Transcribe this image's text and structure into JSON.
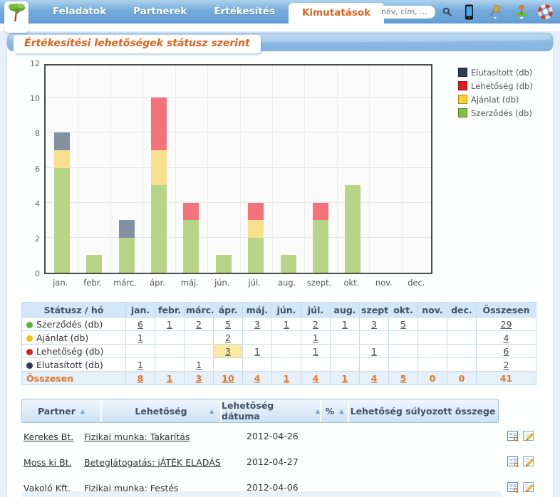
{
  "nav": {
    "tabs": [
      {
        "label": "Feladatok",
        "active": false
      },
      {
        "label": "Partnerek",
        "active": false
      },
      {
        "label": "Értékesítés",
        "active": false
      },
      {
        "label": "Kimutatások",
        "active": true
      }
    ],
    "search": {
      "placeholder": "név, cím, ..."
    },
    "icons": [
      "search-icon",
      "phone-icon",
      "pin-icon",
      "user-icon",
      "help-icon"
    ]
  },
  "page_title": "Értékesítési lehetőségek státusz szerint",
  "chart_data": {
    "type": "bar",
    "stacked": true,
    "categories": [
      "jan.",
      "febr.",
      "márc.",
      "ápr.",
      "máj.",
      "jún.",
      "júl.",
      "aug.",
      "szept.",
      "okt.",
      "nov.",
      "dec."
    ],
    "series": [
      {
        "name": "Szerződés (db)",
        "bar_color": "#b5d686",
        "legend_color": "#82c13d",
        "values": [
          6,
          1,
          2,
          5,
          3,
          1,
          2,
          1,
          3,
          5,
          0,
          0
        ]
      },
      {
        "name": "Ajánlat (db)",
        "bar_color": "#f8e08c",
        "legend_color": "#fdd02f",
        "values": [
          1,
          0,
          0,
          2,
          0,
          0,
          1,
          0,
          0,
          0,
          0,
          0
        ]
      },
      {
        "name": "Lehetőség (db)",
        "bar_color": "#f4737b",
        "legend_color": "#e2191f",
        "values": [
          0,
          0,
          0,
          3,
          1,
          0,
          1,
          0,
          1,
          0,
          0,
          0
        ]
      },
      {
        "name": "Elutasított (db)",
        "bar_color": "#8291a2",
        "legend_color": "#333d4c",
        "values": [
          1,
          0,
          1,
          0,
          0,
          0,
          0,
          0,
          0,
          0,
          0,
          0
        ]
      }
    ],
    "title": "",
    "xlabel": "",
    "ylabel": "",
    "ylim": [
      0,
      12
    ],
    "yticks": [
      0,
      2,
      4,
      6,
      8,
      10,
      12
    ],
    "grid": true,
    "legend_position": "top-right",
    "legend_order_top_to_bottom": [
      "Elutasított (db)",
      "Lehetőség (db)",
      "Ajánlat (db)",
      "Szerződés (db)"
    ]
  },
  "status_table": {
    "header": [
      "Státusz / hó",
      "jan.",
      "febr.",
      "márc.",
      "ápr.",
      "máj.",
      "jún.",
      "júl.",
      "aug.",
      "szept.",
      "okt.",
      "nov.",
      "dec.",
      "Összesen"
    ],
    "rows": [
      {
        "label": "Szerződés (db)",
        "dot_color": "#5cb831",
        "values": [
          "6",
          "1",
          "2",
          "5",
          "3",
          "1",
          "2",
          "1",
          "3",
          "5",
          "",
          ""
        ],
        "total": "29",
        "highlight_col": -1
      },
      {
        "label": "Ajánlat (db)",
        "dot_color": "#f2c313",
        "values": [
          "1",
          "",
          "",
          "2",
          "",
          "",
          "1",
          "",
          "",
          "",
          "",
          ""
        ],
        "total": "4",
        "highlight_col": -1
      },
      {
        "label": "Lehetőség (db)",
        "dot_color": "#e01b1b",
        "values": [
          "",
          "",
          "",
          "3",
          "1",
          "",
          "1",
          "",
          "1",
          "",
          "",
          ""
        ],
        "total": "6",
        "highlight_col": 3
      },
      {
        "label": "Elutasított (db)",
        "dot_color": "#2e3a4e",
        "values": [
          "1",
          "",
          "1",
          "",
          "",
          "",
          "",
          "",
          "",
          "",
          "",
          ""
        ],
        "total": "2",
        "highlight_col": -1
      }
    ],
    "total_row": {
      "label": "Összesen",
      "values": [
        "8",
        "1",
        "3",
        "10",
        "4",
        "1",
        "4",
        "1",
        "4",
        "5",
        "0",
        "0"
      ],
      "total": "41"
    }
  },
  "opportunities_table": {
    "headers": [
      {
        "label": "Partner",
        "sortable": true,
        "arrow_at_edge": false
      },
      {
        "label": "Lehetőség",
        "sortable": true,
        "arrow_at_edge": true
      },
      {
        "label": "Lehetőség dátuma",
        "sortable": true,
        "arrow_at_edge": false
      },
      {
        "label": "%",
        "sortable": true,
        "arrow_at_edge": false
      },
      {
        "label": "Lehetőség súlyozott összege",
        "sortable": false,
        "arrow_at_edge": false
      }
    ],
    "rows": [
      {
        "partner": "Kerekes Bt.",
        "lehetoseg": "Fizikai munka: Takarítás",
        "datum": "2012-04-26",
        "percent": "",
        "sulyozott": ""
      },
      {
        "partner": "Moss ki Bt.",
        "lehetoseg": "Beteglátogatás: jÁTÉK ELADÁS",
        "datum": "2012-04-27",
        "percent": "",
        "sulyozott": ""
      },
      {
        "partner": "Vakoló Kft.",
        "lehetoseg": "Fizikai munka: Festés",
        "datum": "2012-04-06",
        "percent": "",
        "sulyozott": ""
      }
    ],
    "row_icons": [
      "details-icon",
      "edit-icon"
    ]
  }
}
